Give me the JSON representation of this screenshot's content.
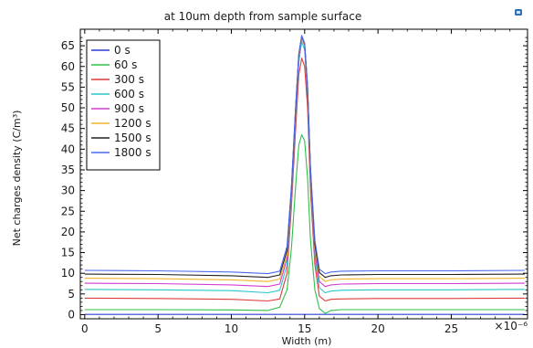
{
  "chart_data": {
    "type": "line",
    "title": "at 10um depth from sample surface",
    "xlabel": "Width (m)",
    "ylabel": "Net charges density (C/m³)",
    "x_multiplier_label": "×10⁻⁶",
    "xlim": [
      -0.3,
      30.2
    ],
    "ylim": [
      -1,
      69
    ],
    "x_ticks": [
      0,
      5,
      10,
      15,
      20,
      25
    ],
    "y_ticks": [
      0,
      5,
      10,
      15,
      20,
      25,
      30,
      35,
      40,
      45,
      50,
      55,
      60,
      65
    ],
    "grid": false,
    "legend_position": "top-left",
    "x": [
      0,
      5,
      10,
      12.5,
      13.3,
      13.8,
      14.1,
      14.4,
      14.6,
      14.8,
      15.0,
      15.2,
      15.4,
      15.7,
      16.0,
      16.4,
      16.8,
      17.5,
      20,
      25,
      30
    ],
    "series": [
      {
        "name": "0 s",
        "color": "#2e3fd6",
        "values": [
          0.05,
          0.05,
          0.05,
          0.05,
          0.05,
          0.05,
          0.05,
          0.05,
          0.05,
          0.05,
          0.05,
          0.05,
          0.05,
          0.05,
          0.05,
          0.05,
          0.05,
          0.05,
          0.05,
          0.05,
          0.05
        ]
      },
      {
        "name": "60 s",
        "color": "#2ec04a",
        "values": [
          1.2,
          1.2,
          1.15,
          1.0,
          1.8,
          6.0,
          16.0,
          32.0,
          41.0,
          43.5,
          42.0,
          33.0,
          18.0,
          6.0,
          1.5,
          0.3,
          1.0,
          1.2,
          1.2,
          1.2,
          1.2
        ]
      },
      {
        "name": "300 s",
        "color": "#e03a3a",
        "values": [
          4.0,
          3.9,
          3.7,
          3.3,
          3.8,
          10.0,
          26.0,
          46.0,
          58.0,
          62.0,
          60.0,
          50.0,
          30.0,
          12.0,
          4.5,
          3.3,
          3.7,
          3.8,
          3.9,
          3.9,
          4.0
        ]
      },
      {
        "name": "600 s",
        "color": "#28c8c8",
        "values": [
          6.1,
          6.0,
          5.8,
          5.3,
          5.9,
          12.0,
          28.0,
          49.0,
          61.0,
          66.0,
          64.0,
          53.0,
          33.0,
          14.0,
          6.5,
          5.3,
          5.7,
          5.9,
          6.0,
          6.0,
          6.1
        ]
      },
      {
        "name": "900 s",
        "color": "#d23cd2",
        "values": [
          7.6,
          7.5,
          7.2,
          6.8,
          7.4,
          13.5,
          29.0,
          50.0,
          62.0,
          67.0,
          65.0,
          54.0,
          34.0,
          15.0,
          8.0,
          6.8,
          7.2,
          7.4,
          7.5,
          7.5,
          7.6
        ]
      },
      {
        "name": "1200 s",
        "color": "#f0b428",
        "values": [
          8.8,
          8.7,
          8.4,
          8.0,
          8.6,
          14.5,
          30.0,
          50.5,
          62.5,
          67.2,
          65.3,
          54.5,
          34.5,
          16.0,
          9.2,
          8.0,
          8.4,
          8.6,
          8.7,
          8.7,
          8.8
        ]
      },
      {
        "name": "1500 s",
        "color": "#222222",
        "values": [
          9.8,
          9.7,
          9.4,
          9.0,
          9.6,
          15.5,
          30.5,
          51.0,
          63.0,
          67.4,
          65.5,
          55.0,
          35.0,
          17.0,
          10.2,
          9.0,
          9.4,
          9.6,
          9.7,
          9.7,
          9.8
        ]
      },
      {
        "name": "1800 s",
        "color": "#4a6af0",
        "values": [
          10.7,
          10.6,
          10.3,
          9.9,
          10.5,
          16.5,
          31.0,
          51.5,
          63.0,
          67.5,
          65.6,
          55.5,
          35.5,
          18.0,
          11.0,
          9.9,
          10.3,
          10.5,
          10.6,
          10.6,
          10.7
        ]
      }
    ]
  }
}
